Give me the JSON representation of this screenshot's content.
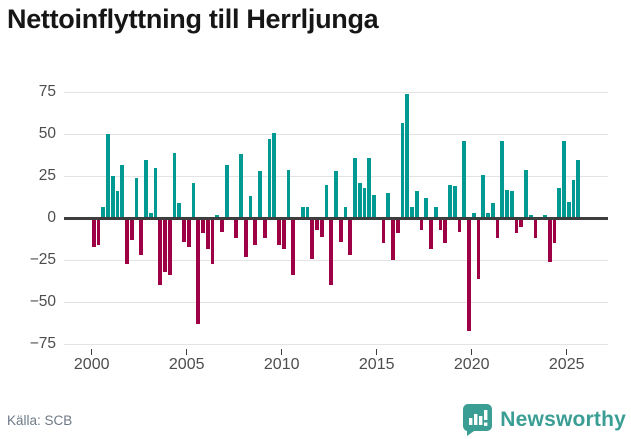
{
  "header": {
    "title": "Nettoinflyttning till Herrljunga"
  },
  "footer": {
    "source": "Källa: SCB",
    "brand": "Newsworthy"
  },
  "chart_data": {
    "type": "bar",
    "title": "Nettoinflyttning till Herrljunga",
    "x_frequency": "quarterly",
    "x_range": {
      "start": "2000 Q1",
      "end": "2025 Q3"
    },
    "values": [
      -17,
      -16,
      7,
      50,
      25,
      16,
      32,
      -27,
      -13,
      24,
      -22,
      35,
      3,
      30,
      -40,
      -32,
      -34,
      39,
      9,
      -14,
      -17,
      21,
      -63,
      -9,
      -18,
      -27,
      2,
      -8,
      32,
      0,
      -12,
      38,
      -23,
      13,
      -16,
      28,
      -12,
      47,
      51,
      -16,
      -18,
      29,
      -34,
      0,
      7,
      7,
      -24,
      -7,
      -11,
      20,
      -40,
      28,
      -14,
      7,
      -22,
      36,
      21,
      18,
      36,
      14,
      0,
      -15,
      15,
      -25,
      -9,
      57,
      74,
      7,
      16,
      -7,
      12,
      -18,
      7,
      -7,
      -15,
      20,
      19,
      -8,
      46,
      -67,
      3,
      -36,
      26,
      3,
      9,
      -12,
      46,
      17,
      16,
      -9,
      -5,
      29,
      2,
      -12,
      0,
      2,
      -26,
      -15,
      18,
      46,
      10,
      23,
      35
    ],
    "xtick_labels": [
      "2000",
      "2005",
      "2010",
      "2015",
      "2020",
      "2025"
    ],
    "ytick_labels": [
      "75",
      "50",
      "25",
      "0",
      "−25",
      "−50",
      "−75"
    ],
    "ytick_values": [
      75,
      50,
      25,
      0,
      -25,
      -50,
      -75
    ],
    "ylim": [
      -80,
      80
    ],
    "grid": "horizontal",
    "legend": "none",
    "bar_colors": {
      "positive": "#009a92",
      "negative": "#9d0045"
    },
    "axis_color": "#3d3d3d",
    "source": "Källa: SCB"
  }
}
